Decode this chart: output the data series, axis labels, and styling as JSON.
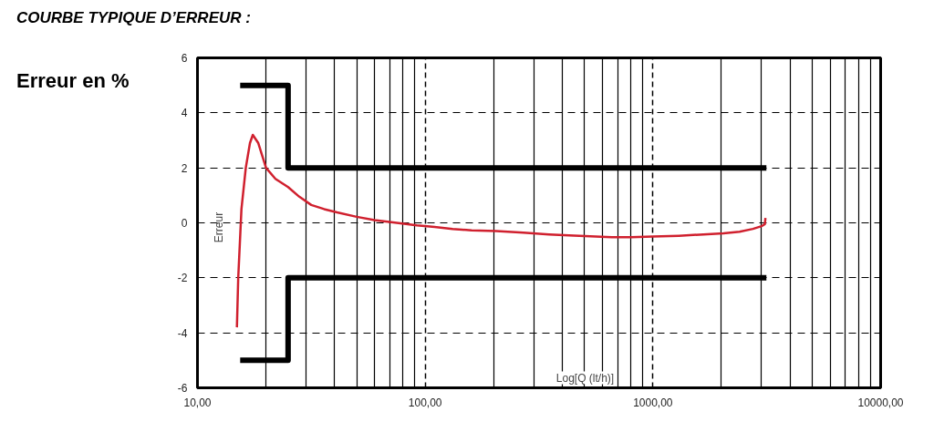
{
  "chart_data": {
    "type": "line",
    "title": "COURBE TYPIQUE D’ERREUR :",
    "ylabel": "Erreur",
    "xlabel": "Log[Q (lt/h)]",
    "annotations": [
      "Erreur en %"
    ],
    "log": "x",
    "grid": true,
    "marker": "none",
    "line_style": "solid",
    "xlim": [
      10,
      10000
    ],
    "xticks": [
      {
        "value": 10,
        "label": "10,00"
      },
      {
        "value": 100,
        "label": "100,00"
      },
      {
        "value": 1000,
        "label": "1000,00"
      },
      {
        "value": 10000,
        "label": "10000,00"
      }
    ],
    "ylim": [
      -6,
      6
    ],
    "yticks": [
      -6,
      -4,
      -2,
      0,
      2,
      4,
      6
    ],
    "series": [
      {
        "color": "#000000",
        "x": [
          15.4,
          25,
          25,
          3150
        ],
        "values": [
          5,
          5,
          2,
          2
        ]
      },
      {
        "color": "#000000",
        "x": [
          15.4,
          25,
          25,
          3150
        ],
        "values": [
          -5,
          -5,
          -2,
          -2
        ]
      },
      {
        "color": "#d0202e",
        "x": [
          14.9,
          15.1,
          15.6,
          16.3,
          17,
          17.5,
          18.5,
          20,
          22,
          25,
          28,
          31.6,
          36,
          41,
          50,
          60,
          75,
          92,
          110,
          132,
          160,
          205,
          270,
          350,
          450,
          560,
          660,
          800,
          1000,
          1300,
          1600,
          2040,
          2400,
          2750,
          3000,
          3100,
          3120
        ],
        "values": [
          -3.8,
          -2,
          0.5,
          2,
          2.9,
          3.2,
          2.9,
          2.0,
          1.6,
          1.3,
          0.95,
          0.65,
          0.5,
          0.38,
          0.22,
          0.1,
          0.0,
          -0.09,
          -0.15,
          -0.22,
          -0.27,
          -0.3,
          -0.36,
          -0.42,
          -0.46,
          -0.5,
          -0.52,
          -0.52,
          -0.5,
          -0.47,
          -0.43,
          -0.38,
          -0.32,
          -0.22,
          -0.12,
          -0.05,
          0.18
        ]
      }
    ]
  }
}
